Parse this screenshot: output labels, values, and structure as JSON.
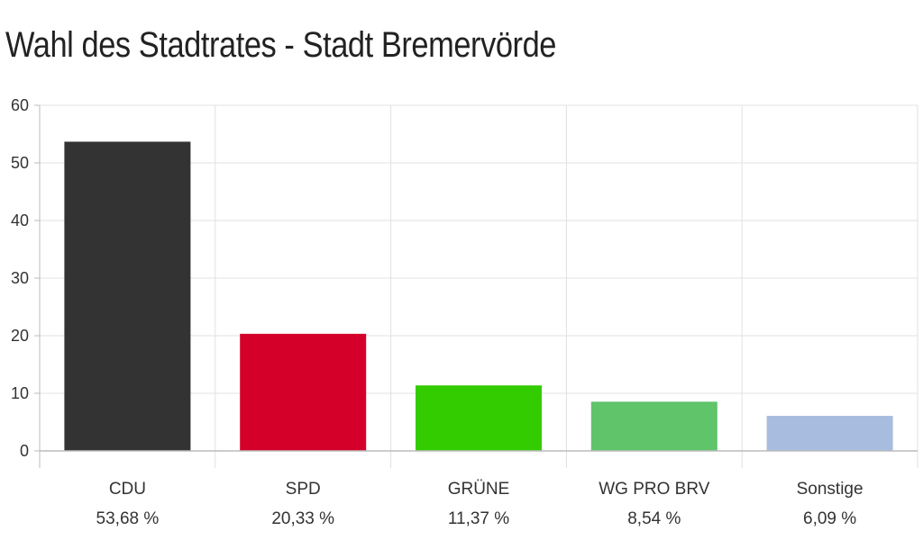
{
  "colors": {
    "gridline": "#e0e0e0",
    "axis": "#bbbbbb",
    "text": "#333333"
  },
  "chart_data": {
    "type": "bar",
    "title": "Wahl des Stadtrates - Stadt Bremervörde",
    "xlabel": "",
    "ylabel": "",
    "ylim": [
      0,
      60
    ],
    "yticks": [
      "0",
      "10",
      "20",
      "30",
      "40",
      "50",
      "60"
    ],
    "grid": true,
    "categories": [
      "CDU",
      "SPD",
      "GRÜNE",
      "WG PRO BRV",
      "Sonstige"
    ],
    "values": [
      53.68,
      20.33,
      11.37,
      8.54,
      6.09
    ],
    "value_labels": [
      "53,68 %",
      "20,33 %",
      "11,37 %",
      "8,54 %",
      "6,09 %"
    ],
    "bar_colors": [
      "#333333",
      "#d5002a",
      "#33cc00",
      "#5fc46a",
      "#a8bce0"
    ]
  }
}
